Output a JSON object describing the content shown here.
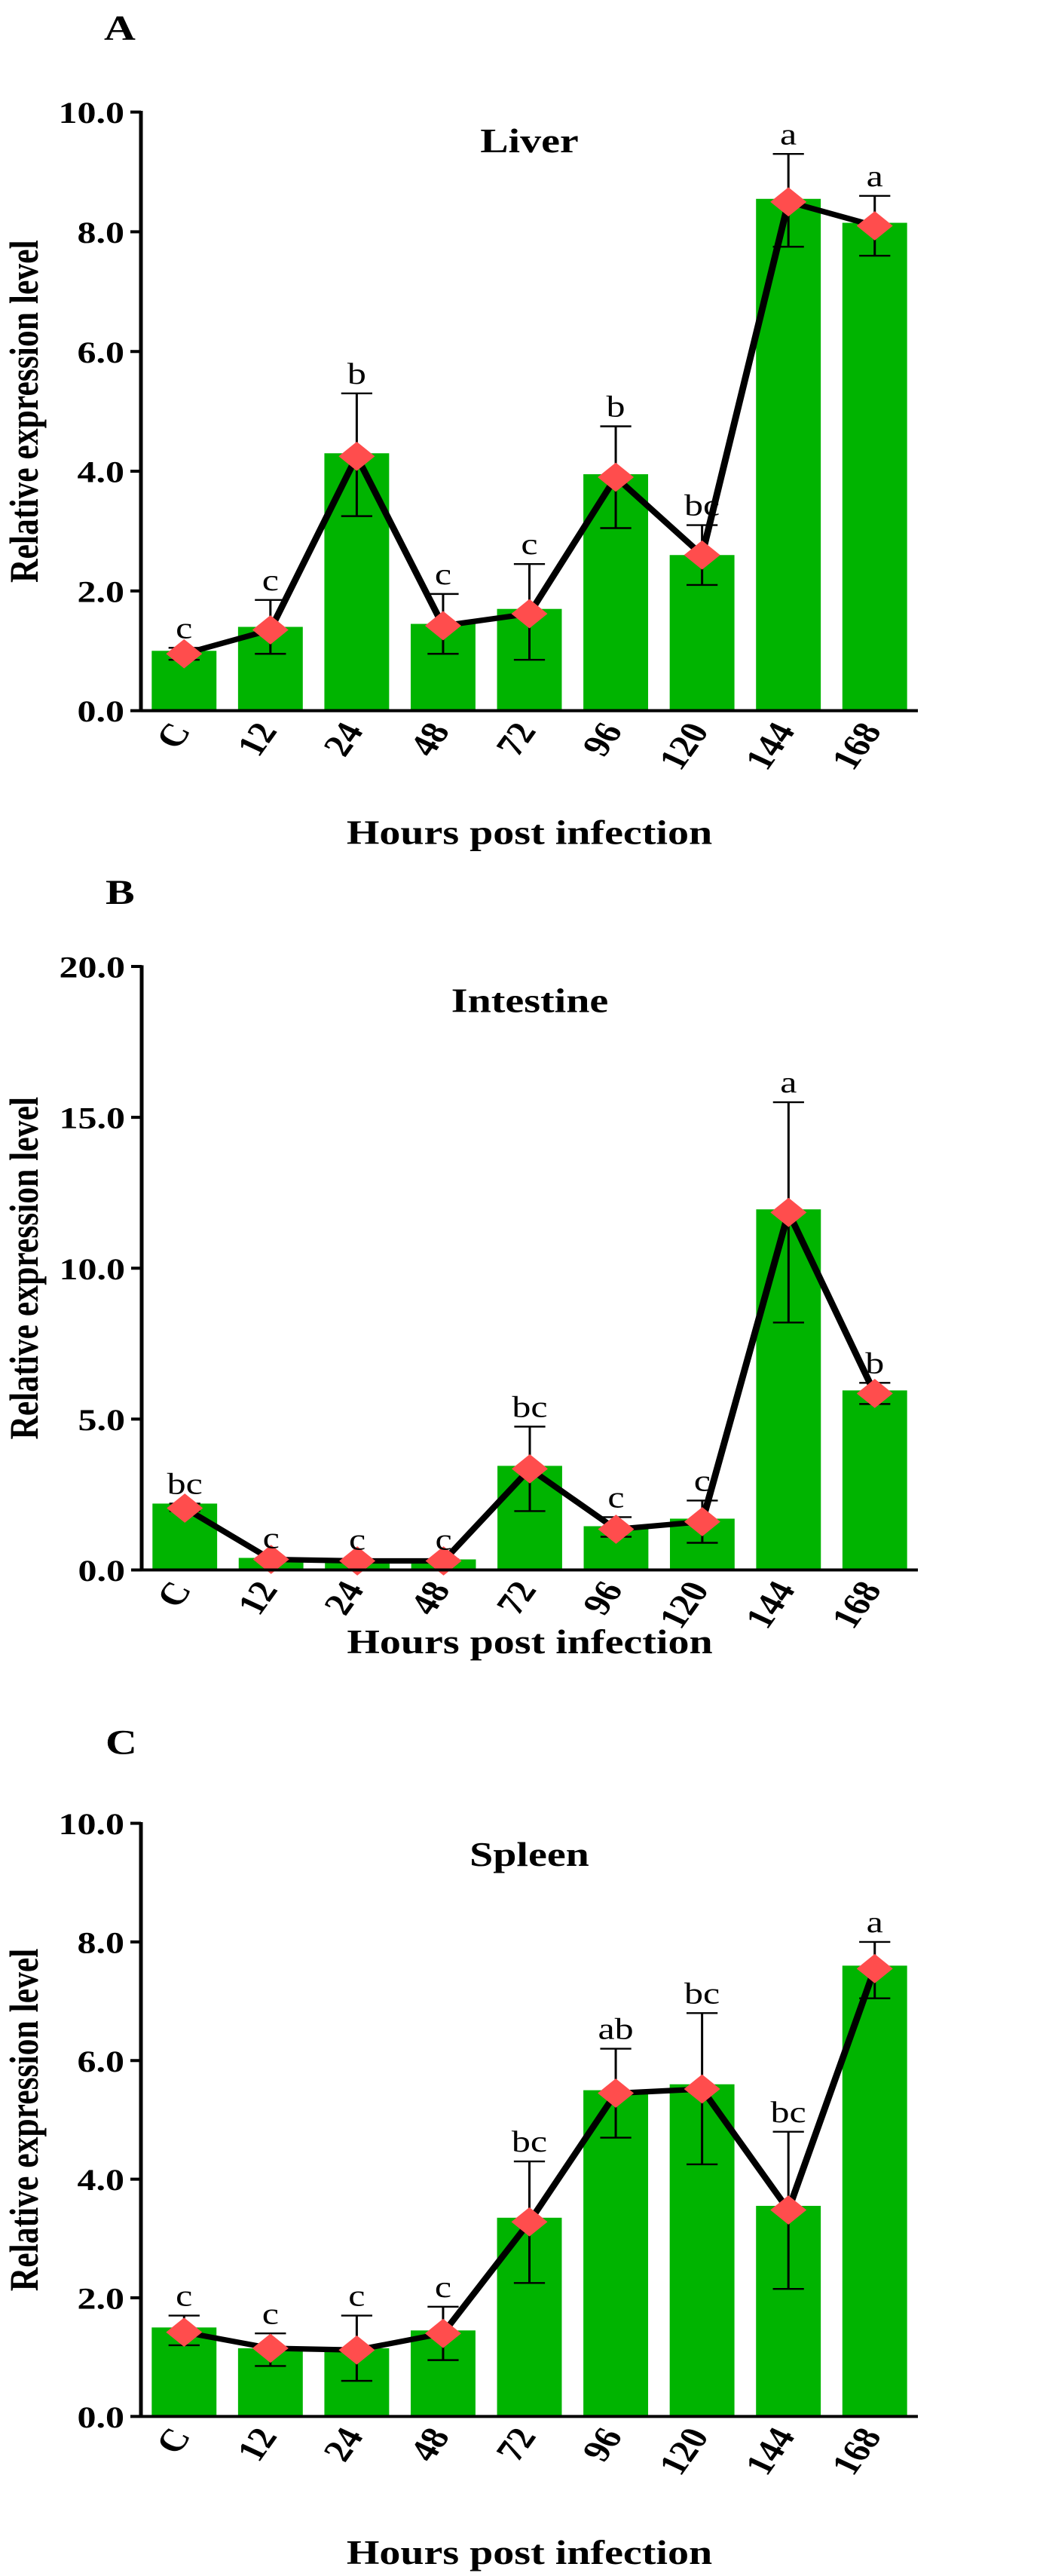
{
  "colors": {
    "bar": "#00b400",
    "marker": "#ff4d4d",
    "line": "#000000"
  },
  "chart_data": [
    {
      "type": "bar",
      "panel_label": "A",
      "title": "Liver",
      "xlabel": "Hours post infection",
      "ylabel": "Relative expression level",
      "categories": [
        "C",
        "12",
        "24",
        "48",
        "72",
        "96",
        "120",
        "144",
        "168"
      ],
      "ylim": [
        0,
        10
      ],
      "yticks": [
        "0.0",
        "2.0",
        "4.0",
        "6.0",
        "8.0",
        "10.0"
      ],
      "series": [
        {
          "type": "bar",
          "values": [
            1.0,
            1.4,
            4.3,
            1.45,
            1.7,
            3.95,
            2.6,
            8.55,
            8.15
          ]
        },
        {
          "type": "line",
          "values": [
            0.95,
            1.35,
            4.25,
            1.42,
            1.62,
            3.9,
            2.6,
            8.5,
            8.1
          ]
        }
      ],
      "error_upper": [
        1.05,
        1.85,
        5.3,
        1.95,
        2.45,
        4.75,
        3.1,
        9.3,
        8.6
      ],
      "error_lower": [
        0.85,
        0.95,
        3.25,
        0.95,
        0.85,
        3.05,
        2.1,
        7.75,
        7.6
      ],
      "significance": [
        "c",
        "c",
        "b",
        "c",
        "c",
        "b",
        "bc",
        "a",
        "a"
      ]
    },
    {
      "type": "bar",
      "panel_label": "B",
      "title": "Intestine",
      "xlabel": "Hours post infection",
      "ylabel": "Relative expression level",
      "categories": [
        "C",
        "12",
        "24",
        "48",
        "72",
        "96",
        "120",
        "144",
        "168"
      ],
      "ylim": [
        0,
        20
      ],
      "yticks": [
        "0.0",
        "5.0",
        "10.0",
        "15.0",
        "20.0"
      ],
      "series": [
        {
          "type": "bar",
          "values": [
            2.2,
            0.4,
            0.35,
            0.35,
            3.45,
            1.45,
            1.7,
            11.95,
            5.95
          ]
        },
        {
          "type": "line",
          "values": [
            2.05,
            0.35,
            0.3,
            0.3,
            3.35,
            1.35,
            1.6,
            11.85,
            5.85
          ]
        }
      ],
      "error_upper": [
        2.2,
        0.4,
        0.35,
        0.35,
        4.75,
        1.75,
        2.3,
        15.5,
        6.2
      ],
      "error_lower": [
        1.95,
        0.3,
        0.25,
        0.25,
        1.95,
        1.1,
        0.9,
        8.2,
        5.5
      ],
      "significance": [
        "bc",
        "c",
        "c",
        "c",
        "bc",
        "c",
        "c",
        "a",
        "b"
      ]
    },
    {
      "type": "bar",
      "panel_label": "C",
      "title": "Spleen",
      "xlabel": "Hours post infection",
      "ylabel": "Relative expression level",
      "categories": [
        "C",
        "12",
        "24",
        "48",
        "72",
        "96",
        "120",
        "144",
        "168"
      ],
      "ylim": [
        0,
        10
      ],
      "yticks": [
        "0.0",
        "2.0",
        "4.0",
        "6.0",
        "8.0",
        "10.0"
      ],
      "series": [
        {
          "type": "bar",
          "values": [
            1.5,
            1.15,
            1.15,
            1.45,
            3.35,
            5.5,
            5.6,
            3.55,
            7.6
          ]
        },
        {
          "type": "line",
          "values": [
            1.42,
            1.15,
            1.12,
            1.4,
            3.28,
            5.45,
            5.52,
            3.48,
            7.55
          ]
        }
      ],
      "error_upper": [
        1.7,
        1.4,
        1.7,
        1.85,
        4.3,
        6.2,
        6.8,
        4.8,
        8.0
      ],
      "error_lower": [
        1.2,
        0.85,
        0.6,
        0.95,
        2.25,
        4.7,
        4.25,
        2.15,
        7.05
      ],
      "significance": [
        "c",
        "c",
        "c",
        "c",
        "bc",
        "ab",
        "bc",
        "bc",
        "a"
      ]
    }
  ]
}
